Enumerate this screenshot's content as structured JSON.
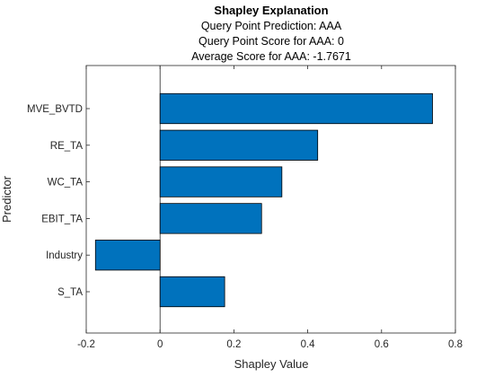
{
  "chart_data": {
    "type": "bar",
    "orientation": "horizontal",
    "title": "Shapley Explanation",
    "subtitle": [
      "Query Point Prediction: AAA",
      "Query Point Score for AAA: 0",
      "Average Score for AAA: -1.7671"
    ],
    "xlabel": "Shapley Value",
    "ylabel": "Predictor",
    "xlim": [
      -0.2,
      0.8
    ],
    "xticks": [
      "-0.2",
      "0",
      "0.2",
      "0.4",
      "0.6",
      "0.8"
    ],
    "categories": [
      "MVE_BVTD",
      "RE_TA",
      "WC_TA",
      "EBIT_TA",
      "Industry",
      "S_TA"
    ],
    "values": [
      0.738,
      0.427,
      0.33,
      0.275,
      -0.175,
      0.175
    ],
    "grid": false,
    "colors": {
      "bar": "#0072BD",
      "bar_edge": "#000000",
      "axis": "#262626"
    }
  }
}
